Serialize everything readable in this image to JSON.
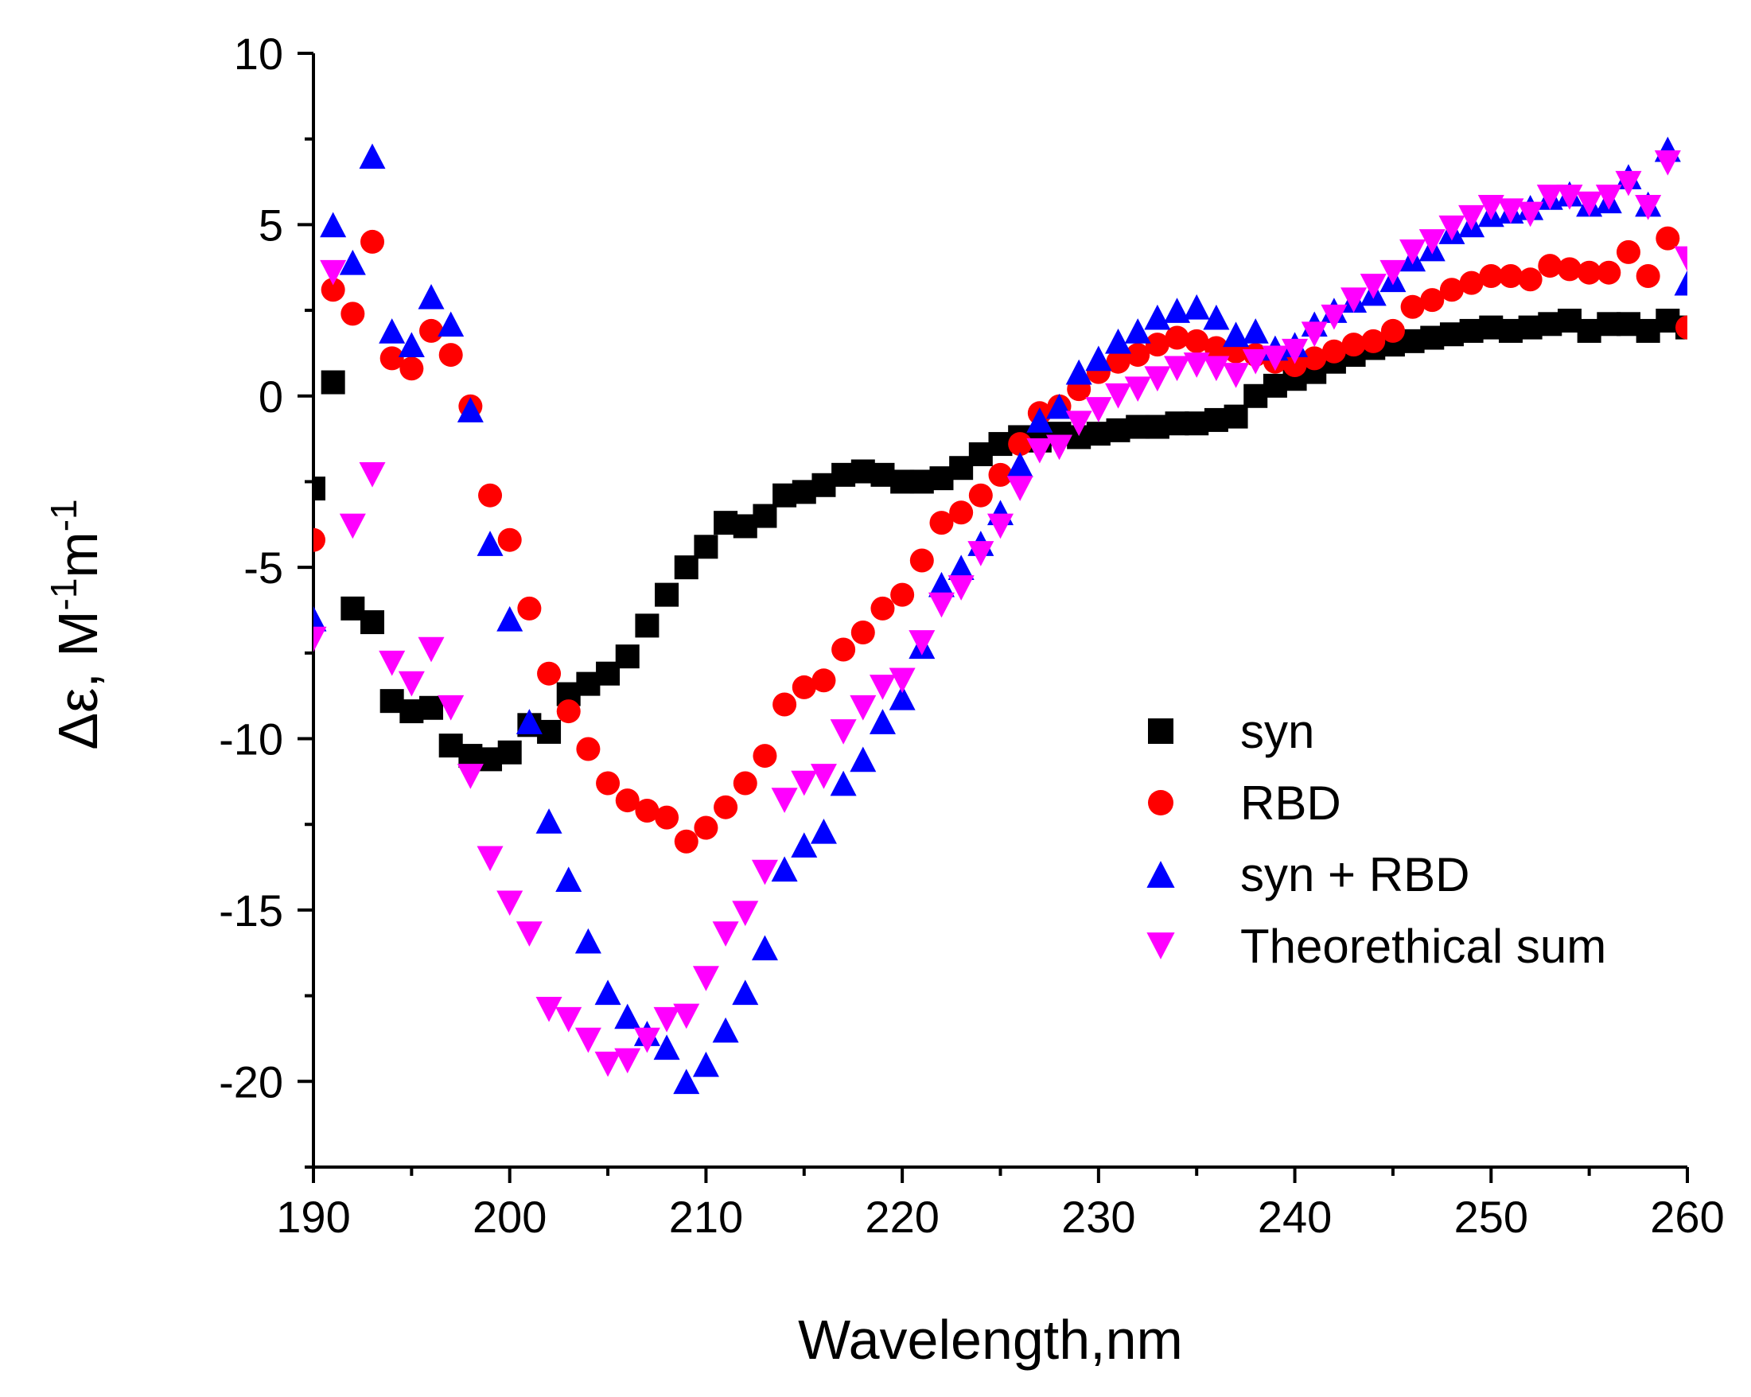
{
  "chart_data": {
    "type": "scatter",
    "title": "",
    "xlabel": "Wavelength,nm",
    "ylabel_main": "Δε, M",
    "ylabel_sup1": "-1",
    "ylabel_mid": "m",
    "ylabel_sup2": "-1",
    "xlim": [
      190,
      260
    ],
    "ylim": [
      -22.5,
      10
    ],
    "xticks": [
      190,
      200,
      210,
      220,
      230,
      240,
      250,
      260
    ],
    "xtick_labels": [
      "190",
      "200",
      "210",
      "220",
      "230",
      "240",
      "250",
      "260"
    ],
    "yticks": [
      -20,
      -15,
      -10,
      -5,
      0,
      5,
      10
    ],
    "ytick_labels": [
      "-20",
      "-15",
      "-10",
      "-5",
      "0",
      "5",
      "10"
    ],
    "legend_position": "lower-right",
    "grid": false,
    "series": [
      {
        "name": "syn",
        "marker": "square",
        "color": "#000000",
        "x": [
          190,
          191,
          192,
          193,
          194,
          195,
          196,
          197,
          198,
          199,
          200,
          201,
          202,
          203,
          204,
          205,
          206,
          207,
          208,
          209,
          210,
          211,
          212,
          213,
          214,
          215,
          216,
          217,
          218,
          219,
          220,
          221,
          222,
          223,
          224,
          225,
          226,
          227,
          228,
          229,
          230,
          231,
          232,
          233,
          234,
          235,
          236,
          237,
          238,
          239,
          240,
          241,
          242,
          243,
          244,
          245,
          246,
          247,
          248,
          249,
          250,
          251,
          252,
          253,
          254,
          255,
          256,
          257,
          258,
          259,
          260
        ],
        "y": [
          -2.7,
          0.4,
          -6.2,
          -6.6,
          -8.9,
          -9.2,
          -9.1,
          -10.2,
          -10.5,
          -10.6,
          -10.4,
          -9.6,
          -9.8,
          -8.7,
          -8.4,
          -8.1,
          -7.6,
          -6.7,
          -5.8,
          -5.0,
          -4.4,
          -3.7,
          -3.8,
          -3.5,
          -2.9,
          -2.8,
          -2.6,
          -2.3,
          -2.2,
          -2.3,
          -2.5,
          -2.5,
          -2.4,
          -2.1,
          -1.7,
          -1.4,
          -1.2,
          -1.3,
          -1.1,
          -1.2,
          -1.1,
          -1.0,
          -0.9,
          -0.9,
          -0.8,
          -0.8,
          -0.7,
          -0.6,
          0.0,
          0.3,
          0.5,
          0.7,
          1.0,
          1.2,
          1.4,
          1.5,
          1.6,
          1.7,
          1.8,
          1.9,
          2.0,
          1.9,
          2.0,
          2.1,
          2.2,
          1.9,
          2.1,
          2.1,
          1.9,
          2.2,
          2.0
        ]
      },
      {
        "name": "RBD",
        "marker": "circle",
        "color": "#ff0000",
        "x": [
          190,
          191,
          192,
          193,
          194,
          195,
          196,
          197,
          198,
          199,
          200,
          201,
          202,
          203,
          204,
          205,
          206,
          207,
          208,
          209,
          210,
          211,
          212,
          213,
          214,
          215,
          216,
          217,
          218,
          219,
          220,
          221,
          222,
          223,
          224,
          225,
          226,
          227,
          228,
          229,
          230,
          231,
          232,
          233,
          234,
          235,
          236,
          237,
          238,
          239,
          240,
          241,
          242,
          243,
          244,
          245,
          246,
          247,
          248,
          249,
          250,
          251,
          252,
          253,
          254,
          255,
          256,
          257,
          258,
          259,
          260
        ],
        "y": [
          -4.2,
          3.1,
          2.4,
          4.5,
          1.1,
          0.8,
          1.9,
          1.2,
          -0.3,
          -2.9,
          -4.2,
          -6.2,
          -8.1,
          -9.2,
          -10.3,
          -11.3,
          -11.8,
          -12.1,
          -12.3,
          -13.0,
          -12.6,
          -12.0,
          -11.3,
          -10.5,
          -9.0,
          -8.5,
          -8.3,
          -7.4,
          -6.9,
          -6.2,
          -5.8,
          -4.8,
          -3.7,
          -3.4,
          -2.9,
          -2.3,
          -1.4,
          -0.5,
          -0.3,
          0.2,
          0.7,
          1.0,
          1.2,
          1.5,
          1.7,
          1.6,
          1.4,
          1.3,
          1.2,
          1.0,
          0.9,
          1.1,
          1.3,
          1.5,
          1.6,
          1.9,
          2.6,
          2.8,
          3.1,
          3.3,
          3.5,
          3.5,
          3.4,
          3.8,
          3.7,
          3.6,
          3.6,
          4.2,
          3.5,
          4.6,
          2.0
        ]
      },
      {
        "name": "syn + RBD",
        "marker": "triangle-up",
        "color": "#0000ff",
        "x": [
          190,
          191,
          192,
          193,
          194,
          195,
          196,
          197,
          198,
          199,
          200,
          201,
          202,
          203,
          204,
          205,
          206,
          207,
          208,
          209,
          210,
          211,
          212,
          213,
          214,
          215,
          216,
          217,
          218,
          219,
          220,
          221,
          222,
          223,
          224,
          225,
          226,
          227,
          228,
          229,
          230,
          231,
          232,
          233,
          234,
          235,
          236,
          237,
          238,
          239,
          240,
          241,
          242,
          243,
          244,
          245,
          246,
          247,
          248,
          249,
          250,
          251,
          252,
          253,
          254,
          255,
          256,
          257,
          258,
          259,
          260
        ],
        "y": [
          -6.5,
          5.0,
          3.9,
          7.0,
          1.9,
          1.5,
          2.9,
          2.1,
          -0.4,
          -4.3,
          -6.5,
          -9.5,
          -12.4,
          -14.1,
          -15.9,
          -17.4,
          -18.1,
          -18.6,
          -19.0,
          -20.0,
          -19.5,
          -18.5,
          -17.4,
          -16.1,
          -13.8,
          -13.1,
          -12.7,
          -11.3,
          -10.6,
          -9.5,
          -8.8,
          -7.3,
          -5.5,
          -5.0,
          -4.3,
          -3.4,
          -2.0,
          -0.7,
          -0.3,
          0.7,
          1.1,
          1.6,
          1.9,
          2.3,
          2.5,
          2.6,
          2.3,
          1.8,
          1.9,
          1.4,
          1.5,
          2.1,
          2.5,
          2.8,
          3.0,
          3.4,
          4.0,
          4.3,
          4.8,
          5.0,
          5.3,
          5.4,
          5.5,
          5.8,
          5.9,
          5.6,
          5.7,
          6.4,
          5.6,
          7.2,
          3.3
        ]
      },
      {
        "name": "Theorethical sum",
        "marker": "triangle-down",
        "color": "#ff00ff",
        "x": [
          190,
          191,
          192,
          193,
          194,
          195,
          196,
          197,
          198,
          199,
          200,
          201,
          202,
          203,
          204,
          205,
          206,
          207,
          208,
          209,
          210,
          211,
          212,
          213,
          214,
          215,
          216,
          217,
          218,
          219,
          220,
          221,
          222,
          223,
          224,
          225,
          226,
          227,
          228,
          229,
          230,
          231,
          232,
          233,
          234,
          235,
          236,
          237,
          238,
          239,
          240,
          241,
          242,
          243,
          244,
          245,
          246,
          247,
          248,
          249,
          250,
          251,
          252,
          253,
          254,
          255,
          256,
          257,
          258,
          259,
          260
        ],
        "y": [
          -7.1,
          3.6,
          -3.8,
          -2.3,
          -7.8,
          -8.4,
          -7.4,
          -9.1,
          -11.1,
          -13.5,
          -14.8,
          -15.7,
          -17.9,
          -18.2,
          -18.8,
          -19.5,
          -19.4,
          -18.8,
          -18.2,
          -18.1,
          -17.0,
          -15.7,
          -15.1,
          -13.9,
          -11.8,
          -11.3,
          -11.1,
          -9.8,
          -9.1,
          -8.5,
          -8.3,
          -7.2,
          -6.1,
          -5.6,
          -4.6,
          -3.8,
          -2.7,
          -1.6,
          -1.5,
          -0.8,
          -0.4,
          0.0,
          0.2,
          0.5,
          0.8,
          0.9,
          0.8,
          0.6,
          1.0,
          1.1,
          1.3,
          1.8,
          2.3,
          2.8,
          3.2,
          3.6,
          4.2,
          4.5,
          4.9,
          5.2,
          5.5,
          5.4,
          5.3,
          5.8,
          5.8,
          5.6,
          5.8,
          6.2,
          5.5,
          6.8,
          4.0
        ]
      }
    ]
  }
}
